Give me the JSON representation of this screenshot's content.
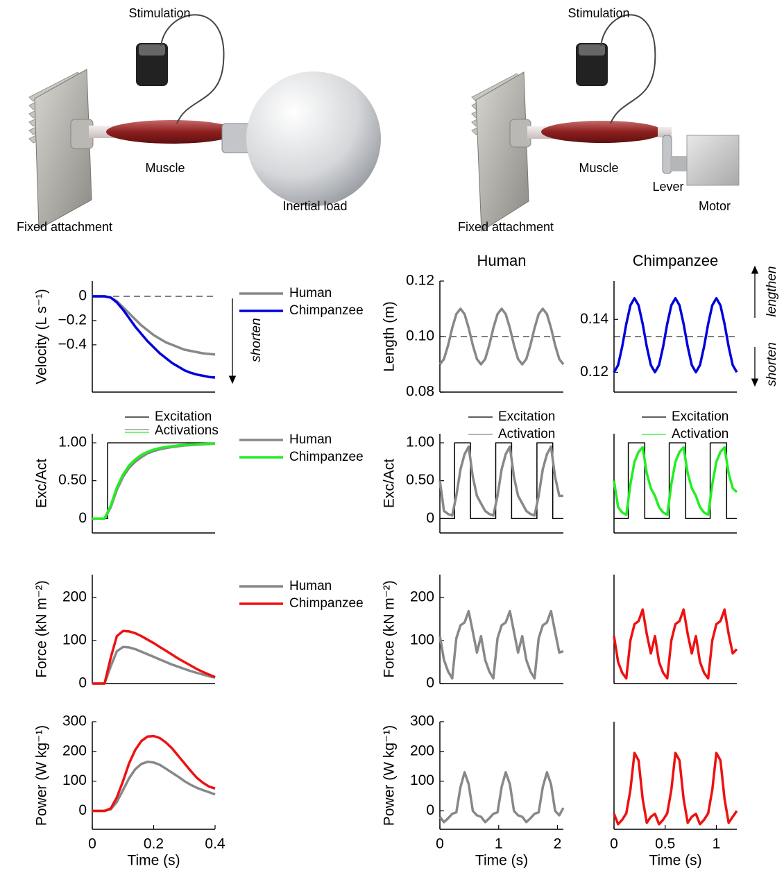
{
  "illustrations": {
    "left": {
      "stimulation": "Stimulation",
      "muscle": "Muscle",
      "load": "Inertial load",
      "attachment": "Fixed attachment"
    },
    "right": {
      "stimulation": "Stimulation",
      "muscle": "Muscle",
      "lever": "Lever",
      "motor": "Motor",
      "attachment": "Fixed attachment"
    }
  },
  "chart_data": [
    {
      "type": "line",
      "ylabel": "Velocity (L s⁻¹)",
      "xlim": [
        0,
        0.4
      ],
      "ylim": [
        -0.79,
        0.126
      ],
      "yticks": [
        0,
        {
          "value": -0.2,
          "label": "−0.2"
        },
        {
          "value": -0.4,
          "label": "−0.4"
        }
      ],
      "hline": 0,
      "annotations": [
        "shorten"
      ],
      "x": [
        0,
        0.02,
        0.04,
        0.06,
        0.08,
        0.1,
        0.12,
        0.14,
        0.16,
        0.18,
        0.2,
        0.22,
        0.24,
        0.26,
        0.28,
        0.3,
        0.32,
        0.34,
        0.36,
        0.38,
        0.4
      ],
      "series": [
        {
          "name": "Human",
          "color": "#888888",
          "values": [
            0,
            0,
            0,
            -0.01,
            -0.04,
            -0.09,
            -0.14,
            -0.19,
            -0.24,
            -0.28,
            -0.32,
            -0.35,
            -0.38,
            -0.4,
            -0.42,
            -0.44,
            -0.45,
            -0.46,
            -0.47,
            -0.475,
            -0.48
          ]
        },
        {
          "name": "Chimpanzee",
          "color": "#0000dd",
          "values": [
            0,
            0,
            0,
            -0.01,
            -0.05,
            -0.11,
            -0.18,
            -0.25,
            -0.31,
            -0.37,
            -0.42,
            -0.47,
            -0.51,
            -0.55,
            -0.58,
            -0.61,
            -0.63,
            -0.645,
            -0.655,
            -0.665,
            -0.67
          ]
        }
      ]
    },
    {
      "type": "line",
      "title": "Human",
      "ylabel": "Length (m)",
      "xlim": [
        0,
        2.1
      ],
      "ylim": [
        0.08,
        0.12
      ],
      "yticks": [
        0.08,
        {
          "value": 0.1,
          "label": "0.10"
        },
        0.12
      ],
      "hline": 0.1,
      "x": [
        0,
        0.07,
        0.14,
        0.21,
        0.28,
        0.35,
        0.42,
        0.49,
        0.56,
        0.63,
        0.7,
        0.77,
        0.84,
        0.91,
        0.98,
        1.05,
        1.12,
        1.19,
        1.26,
        1.33,
        1.4,
        1.47,
        1.54,
        1.61,
        1.68,
        1.75,
        1.82,
        1.89,
        1.96,
        2.03,
        2.1
      ],
      "series": [
        {
          "color": "#888888",
          "values": [
            0.09,
            0.0919,
            0.0969,
            0.1031,
            0.1081,
            0.11,
            0.1081,
            0.1031,
            0.0969,
            0.0919,
            0.09,
            0.0919,
            0.0969,
            0.1031,
            0.1081,
            0.11,
            0.1081,
            0.1031,
            0.0969,
            0.0919,
            0.09,
            0.0919,
            0.0969,
            0.1031,
            0.1081,
            0.11,
            0.1081,
            0.1031,
            0.0969,
            0.0919,
            0.09
          ]
        }
      ]
    },
    {
      "type": "line",
      "title": "Chimpanzee",
      "xlim": [
        0,
        1.2
      ],
      "ylim": [
        0.1125,
        0.1545
      ],
      "yticks": [
        0.12,
        0.14
      ],
      "hline": 0.1335,
      "annotations": [
        "shorten",
        "lengthen"
      ],
      "x": [
        0,
        0.04,
        0.08,
        0.12,
        0.16,
        0.2,
        0.24,
        0.28,
        0.32,
        0.36,
        0.4,
        0.44,
        0.48,
        0.52,
        0.56,
        0.6,
        0.64,
        0.68,
        0.72,
        0.76,
        0.8,
        0.84,
        0.88,
        0.92,
        0.96,
        1,
        1.04,
        1.08,
        1.12,
        1.16,
        1.2
      ],
      "series": [
        {
          "color": "#0000dd",
          "values": [
            0.12,
            0.1227,
            0.1297,
            0.1383,
            0.1453,
            0.148,
            0.1453,
            0.1383,
            0.1297,
            0.1227,
            0.12,
            0.1227,
            0.1297,
            0.1383,
            0.1453,
            0.148,
            0.1453,
            0.1383,
            0.1297,
            0.1227,
            0.12,
            0.1227,
            0.1297,
            0.1383,
            0.1453,
            0.148,
            0.1453,
            0.1383,
            0.1297,
            0.1227,
            0.12
          ]
        }
      ]
    },
    {
      "type": "line",
      "ylabel": "Exc/Act",
      "xlim": [
        0,
        0.4
      ],
      "ylim": [
        -0.19,
        1.12
      ],
      "yticks": [
        0,
        {
          "value": 0.5,
          "label": "0.50"
        },
        {
          "value": 1,
          "label": "1.00"
        }
      ],
      "legend_group": "Activations",
      "x": [
        0,
        0.02,
        0.04,
        0.06,
        0.08,
        0.1,
        0.12,
        0.14,
        0.16,
        0.18,
        0.2,
        0.22,
        0.24,
        0.26,
        0.28,
        0.3,
        0.32,
        0.34,
        0.36,
        0.38,
        0.4
      ],
      "series": [
        {
          "name": "Excitation",
          "color": "#000000",
          "x": [
            0,
            0.05,
            0.05,
            0.4
          ],
          "values": [
            0,
            0,
            1,
            1
          ]
        },
        {
          "name": "Human",
          "color": "#888888",
          "values": [
            0,
            0,
            0,
            0.15,
            0.38,
            0.55,
            0.67,
            0.75,
            0.81,
            0.86,
            0.89,
            0.915,
            0.93,
            0.945,
            0.955,
            0.965,
            0.97,
            0.975,
            0.98,
            0.985,
            0.99
          ]
        },
        {
          "name": "Chimpanzee",
          "color": "#22ee22",
          "values": [
            0,
            0,
            0,
            0.17,
            0.41,
            0.58,
            0.7,
            0.78,
            0.84,
            0.88,
            0.91,
            0.93,
            0.945,
            0.955,
            0.965,
            0.972,
            0.978,
            0.982,
            0.986,
            0.989,
            0.99
          ]
        }
      ]
    },
    {
      "type": "line",
      "ylabel": "Exc/Act",
      "xlim": [
        0,
        2.1
      ],
      "ylim": [
        -0.19,
        1.12
      ],
      "yticks": [
        0,
        {
          "value": 0.5,
          "label": "0.50"
        },
        {
          "value": 1,
          "label": "1.00"
        }
      ],
      "x": [
        0,
        0.07,
        0.14,
        0.21,
        0.28,
        0.35,
        0.42,
        0.49,
        0.56,
        0.63,
        0.7,
        0.77,
        0.84,
        0.91,
        0.98,
        1.05,
        1.12,
        1.19,
        1.26,
        1.33,
        1.4,
        1.47,
        1.54,
        1.61,
        1.68,
        1.75,
        1.82,
        1.89,
        1.96,
        2.03,
        2.1
      ],
      "series": [
        {
          "name": "Excitation",
          "color": "#000000",
          "x": [
            0,
            0.25,
            0.25,
            0.52,
            0.52,
            0.95,
            0.95,
            1.22,
            1.22,
            1.65,
            1.65,
            1.92,
            1.92,
            2.1
          ],
          "values": [
            0,
            0,
            1,
            1,
            0,
            0,
            1,
            1,
            0,
            0,
            1,
            1,
            0,
            0
          ]
        },
        {
          "name": "Activation",
          "color": "#888888",
          "values": [
            0.5,
            0.1,
            0.06,
            0.04,
            0.3,
            0.65,
            0.85,
            0.95,
            0.55,
            0.3,
            0.2,
            0.1,
            0.06,
            0.04,
            0.3,
            0.65,
            0.85,
            0.95,
            0.55,
            0.3,
            0.2,
            0.1,
            0.06,
            0.04,
            0.3,
            0.65,
            0.85,
            0.95,
            0.55,
            0.3,
            0.3
          ]
        }
      ]
    },
    {
      "type": "line",
      "xlim": [
        0,
        1.2
      ],
      "ylim": [
        -0.19,
        1.12
      ],
      "x": [
        0,
        0.04,
        0.08,
        0.12,
        0.16,
        0.2,
        0.24,
        0.28,
        0.32,
        0.36,
        0.4,
        0.44,
        0.48,
        0.52,
        0.56,
        0.6,
        0.64,
        0.68,
        0.72,
        0.76,
        0.8,
        0.84,
        0.88,
        0.92,
        0.96,
        1,
        1.04,
        1.08,
        1.12,
        1.16,
        1.2
      ],
      "series": [
        {
          "name": "Excitation",
          "color": "#000000",
          "x": [
            0,
            0.14,
            0.14,
            0.3,
            0.3,
            0.54,
            0.54,
            0.7,
            0.7,
            0.94,
            0.94,
            1.1,
            1.1,
            1.2
          ],
          "values": [
            0,
            0,
            1,
            1,
            0,
            0,
            1,
            1,
            0,
            0,
            1,
            1,
            0,
            0
          ]
        },
        {
          "name": "Activation",
          "color": "#22ee22",
          "values": [
            0.5,
            0.15,
            0.08,
            0.05,
            0.45,
            0.75,
            0.88,
            0.94,
            0.6,
            0.4,
            0.3,
            0.15,
            0.08,
            0.05,
            0.45,
            0.75,
            0.88,
            0.94,
            0.6,
            0.4,
            0.3,
            0.15,
            0.08,
            0.05,
            0.45,
            0.75,
            0.88,
            0.94,
            0.6,
            0.4,
            0.35
          ]
        }
      ]
    },
    {
      "type": "line",
      "ylabel": "Force (kN m⁻²)",
      "xlim": [
        0,
        0.4
      ],
      "ylim": [
        0,
        253
      ],
      "yticks": [
        0,
        100,
        200
      ],
      "x": [
        0,
        0.02,
        0.04,
        0.06,
        0.08,
        0.1,
        0.12,
        0.14,
        0.16,
        0.18,
        0.2,
        0.22,
        0.24,
        0.26,
        0.28,
        0.3,
        0.32,
        0.34,
        0.36,
        0.38,
        0.4
      ],
      "series": [
        {
          "name": "Human",
          "color": "#888888",
          "values": [
            0,
            0,
            0,
            40,
            75,
            85,
            84,
            80,
            74,
            68,
            62,
            56,
            50,
            44,
            39,
            34,
            29,
            25,
            21,
            17,
            14
          ]
        },
        {
          "name": "Chimpanzee",
          "color": "#ee1111",
          "values": [
            0,
            0,
            0,
            60,
            110,
            122,
            121,
            117,
            110,
            102,
            94,
            85,
            76,
            67,
            58,
            50,
            42,
            34,
            27,
            21,
            15
          ]
        }
      ]
    },
    {
      "type": "line",
      "ylabel": "Force (kN m⁻²)",
      "xlim": [
        0,
        2.1
      ],
      "ylim": [
        0,
        253
      ],
      "yticks": [
        0,
        100,
        200
      ],
      "x": [
        0,
        0.07,
        0.14,
        0.21,
        0.28,
        0.35,
        0.42,
        0.49,
        0.56,
        0.63,
        0.7,
        0.77,
        0.84,
        0.91,
        0.98,
        1.05,
        1.12,
        1.19,
        1.26,
        1.33,
        1.4,
        1.47,
        1.54,
        1.61,
        1.68,
        1.75,
        1.82,
        1.89,
        1.96,
        2.03,
        2.1
      ],
      "series": [
        {
          "color": "#888888",
          "values": [
            110,
            55,
            28,
            12,
            105,
            135,
            142,
            168,
            120,
            72,
            110,
            55,
            28,
            12,
            105,
            135,
            142,
            168,
            120,
            72,
            110,
            55,
            28,
            12,
            105,
            135,
            142,
            168,
            120,
            72,
            75
          ]
        }
      ]
    },
    {
      "type": "line",
      "xlim": [
        0,
        1.2
      ],
      "ylim": [
        0,
        253
      ],
      "x": [
        0,
        0.04,
        0.08,
        0.12,
        0.16,
        0.2,
        0.24,
        0.28,
        0.32,
        0.36,
        0.4,
        0.44,
        0.48,
        0.52,
        0.56,
        0.6,
        0.64,
        0.68,
        0.72,
        0.76,
        0.8,
        0.84,
        0.88,
        0.92,
        0.96,
        1,
        1.04,
        1.08,
        1.12,
        1.16,
        1.2
      ],
      "series": [
        {
          "color": "#ee1111",
          "values": [
            110,
            50,
            25,
            12,
            100,
            138,
            145,
            172,
            115,
            70,
            110,
            50,
            25,
            12,
            100,
            138,
            145,
            172,
            115,
            70,
            110,
            50,
            25,
            12,
            100,
            138,
            145,
            172,
            115,
            70,
            80
          ]
        }
      ]
    },
    {
      "type": "line",
      "ylabel": "Power (W kg⁻¹)",
      "xlabel": "Time (s)",
      "xlim": [
        0,
        0.4
      ],
      "ylim": [
        -62,
        300
      ],
      "yticks": [
        0,
        100,
        200,
        300
      ],
      "xticks": [
        0,
        0.2,
        0.4
      ],
      "x": [
        0,
        0.02,
        0.04,
        0.06,
        0.08,
        0.1,
        0.12,
        0.14,
        0.16,
        0.18,
        0.2,
        0.22,
        0.24,
        0.26,
        0.28,
        0.3,
        0.32,
        0.34,
        0.36,
        0.38,
        0.4
      ],
      "series": [
        {
          "color": "#888888",
          "values": [
            0,
            0,
            0,
            5,
            30,
            70,
            110,
            140,
            158,
            165,
            163,
            155,
            142,
            128,
            115,
            100,
            88,
            78,
            70,
            63,
            55
          ]
        },
        {
          "color": "#ee1111",
          "values": [
            0,
            0,
            0,
            8,
            45,
            100,
            160,
            205,
            235,
            250,
            252,
            245,
            230,
            210,
            185,
            160,
            135,
            112,
            95,
            82,
            75
          ]
        }
      ]
    },
    {
      "type": "line",
      "ylabel": "Power (W kg⁻¹)",
      "xlabel": "Time (s)",
      "xlim": [
        0,
        2.1
      ],
      "ylim": [
        -62,
        300
      ],
      "yticks": [
        0,
        100,
        200,
        300
      ],
      "xticks": [
        0,
        1,
        2
      ],
      "x": [
        0,
        0.07,
        0.14,
        0.21,
        0.28,
        0.35,
        0.42,
        0.49,
        0.56,
        0.63,
        0.7,
        0.77,
        0.84,
        0.91,
        0.98,
        1.05,
        1.12,
        1.19,
        1.26,
        1.33,
        1.4,
        1.47,
        1.54,
        1.61,
        1.68,
        1.75,
        1.82,
        1.89,
        1.96,
        2.03,
        2.1
      ],
      "series": [
        {
          "color": "#888888",
          "values": [
            -20,
            -38,
            -25,
            -10,
            -5,
            80,
            130,
            90,
            0,
            -15,
            -20,
            -38,
            -25,
            -10,
            -5,
            80,
            130,
            90,
            0,
            -15,
            -20,
            -38,
            -25,
            -10,
            -5,
            80,
            130,
            90,
            0,
            -15,
            10
          ]
        }
      ]
    },
    {
      "type": "line",
      "xlabel": "Time (s)",
      "xlim": [
        0,
        1.2
      ],
      "ylim": [
        -62,
        300
      ],
      "xticks": [
        0,
        0.5,
        1
      ],
      "x": [
        0,
        0.04,
        0.08,
        0.12,
        0.16,
        0.2,
        0.24,
        0.28,
        0.32,
        0.36,
        0.4,
        0.44,
        0.48,
        0.52,
        0.56,
        0.6,
        0.64,
        0.68,
        0.72,
        0.76,
        0.8,
        0.84,
        0.88,
        0.92,
        0.96,
        1,
        1.04,
        1.08,
        1.12,
        1.16,
        1.2
      ],
      "series": [
        {
          "color": "#ee1111",
          "values": [
            -10,
            -45,
            -30,
            -8,
            70,
            195,
            170,
            40,
            -40,
            -20,
            -10,
            -45,
            -30,
            -8,
            70,
            195,
            170,
            40,
            -40,
            -20,
            -10,
            -45,
            -30,
            -8,
            70,
            195,
            170,
            40,
            -40,
            -20,
            0
          ]
        }
      ]
    }
  ]
}
